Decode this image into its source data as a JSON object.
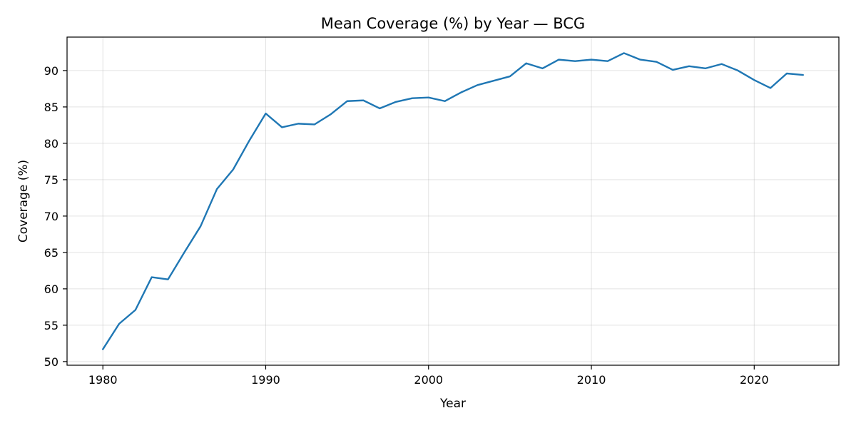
{
  "chart_data": {
    "type": "line",
    "title": "Mean Coverage (%) by Year — BCG",
    "xlabel": "Year",
    "ylabel": "Coverage (%)",
    "xlim": [
      1977.8,
      2025.2
    ],
    "ylim": [
      49.5,
      94.6
    ],
    "xticks": [
      1980,
      1990,
      2000,
      2010,
      2020
    ],
    "yticks": [
      50,
      55,
      60,
      65,
      70,
      75,
      80,
      85,
      90
    ],
    "grid": true,
    "series": [
      {
        "name": "BCG",
        "color": "#1f77b4",
        "x": [
          1980,
          1981,
          1982,
          1983,
          1984,
          1985,
          1986,
          1987,
          1988,
          1989,
          1990,
          1991,
          1992,
          1993,
          1994,
          1995,
          1996,
          1997,
          1998,
          1999,
          2000,
          2001,
          2002,
          2003,
          2004,
          2005,
          2006,
          2007,
          2008,
          2009,
          2010,
          2011,
          2012,
          2013,
          2014,
          2015,
          2016,
          2017,
          2018,
          2019,
          2020,
          2021,
          2022,
          2023
        ],
        "values": [
          51.7,
          55.2,
          57.1,
          61.6,
          61.3,
          65.0,
          68.6,
          73.7,
          76.4,
          80.4,
          84.1,
          82.2,
          82.7,
          82.6,
          84.0,
          85.8,
          85.9,
          84.8,
          85.7,
          86.2,
          86.3,
          85.8,
          87.0,
          88.0,
          88.6,
          89.2,
          91.0,
          90.3,
          91.5,
          91.3,
          91.5,
          91.3,
          92.4,
          91.5,
          91.2,
          90.1,
          90.6,
          90.3,
          90.9,
          90.0,
          88.7,
          87.6,
          89.6,
          89.4
        ]
      }
    ]
  }
}
